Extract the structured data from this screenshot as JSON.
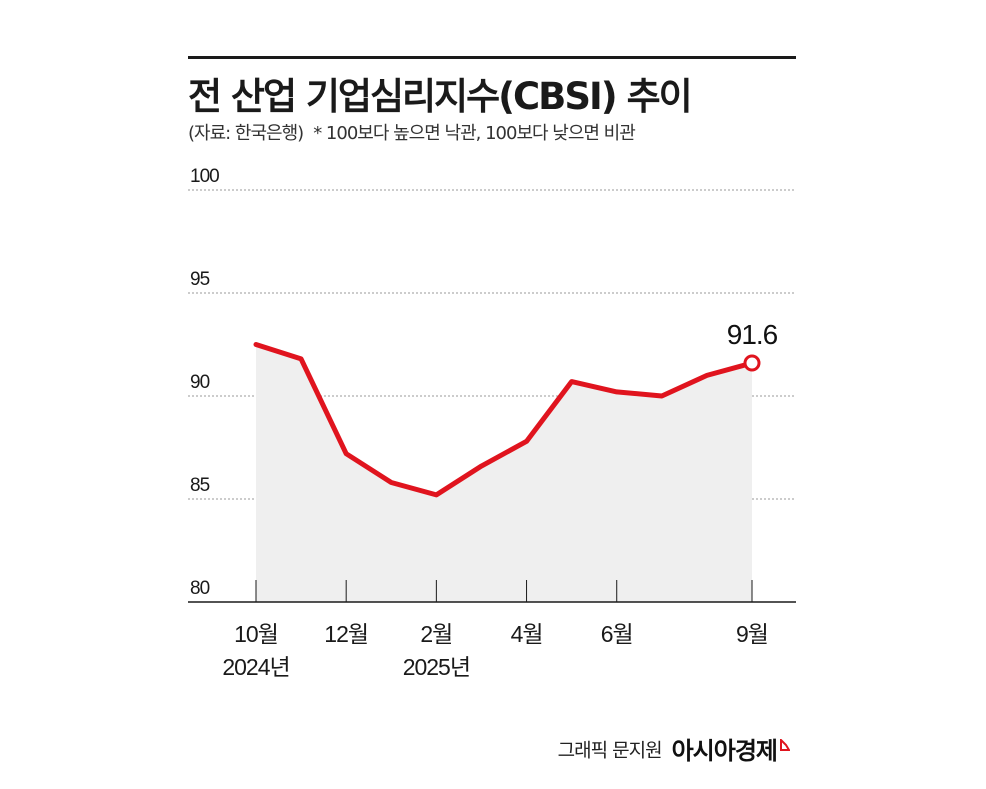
{
  "header": {
    "title": "전 산업 기업심리지수(CBSI) 추이",
    "source": "(자료: 한국은행)",
    "note": "* 100보다 높으면 낙관, 100보다 낮으면 비관"
  },
  "chart_data": {
    "type": "area",
    "title": "전 산업 기업심리지수(CBSI) 추이",
    "x": [
      "2024-10",
      "2024-11",
      "2024-12",
      "2025-01",
      "2025-02",
      "2025-03",
      "2025-04",
      "2025-05",
      "2025-06",
      "2025-07",
      "2025-08",
      "2025-09"
    ],
    "series": [
      {
        "values": [
          92.5,
          91.8,
          87.2,
          85.8,
          85.2,
          86.6,
          87.8,
          90.7,
          90.2,
          90.0,
          91.0,
          91.6
        ]
      }
    ],
    "ylim": [
      80,
      100
    ],
    "yticks": [
      100,
      95,
      90,
      85,
      80
    ],
    "xticks": [
      {
        "x": "2024-10",
        "label": "10월",
        "year": "2024년"
      },
      {
        "x": "2024-12",
        "label": "12월"
      },
      {
        "x": "2025-02",
        "label": "2월",
        "year": "2025년"
      },
      {
        "x": "2025-04",
        "label": "4월"
      },
      {
        "x": "2025-06",
        "label": "6월"
      },
      {
        "x": "2025-09",
        "label": "9월"
      }
    ],
    "last_value_label": "91.6",
    "grid": true,
    "colors": {
      "line": "#e0141e",
      "area": "#efefef",
      "grid": "#999999",
      "axis": "#1a1a1a"
    }
  },
  "credit": {
    "byline": "그래픽 문지원",
    "brand": "아시아경제",
    "brand_color": "#e0141e"
  }
}
